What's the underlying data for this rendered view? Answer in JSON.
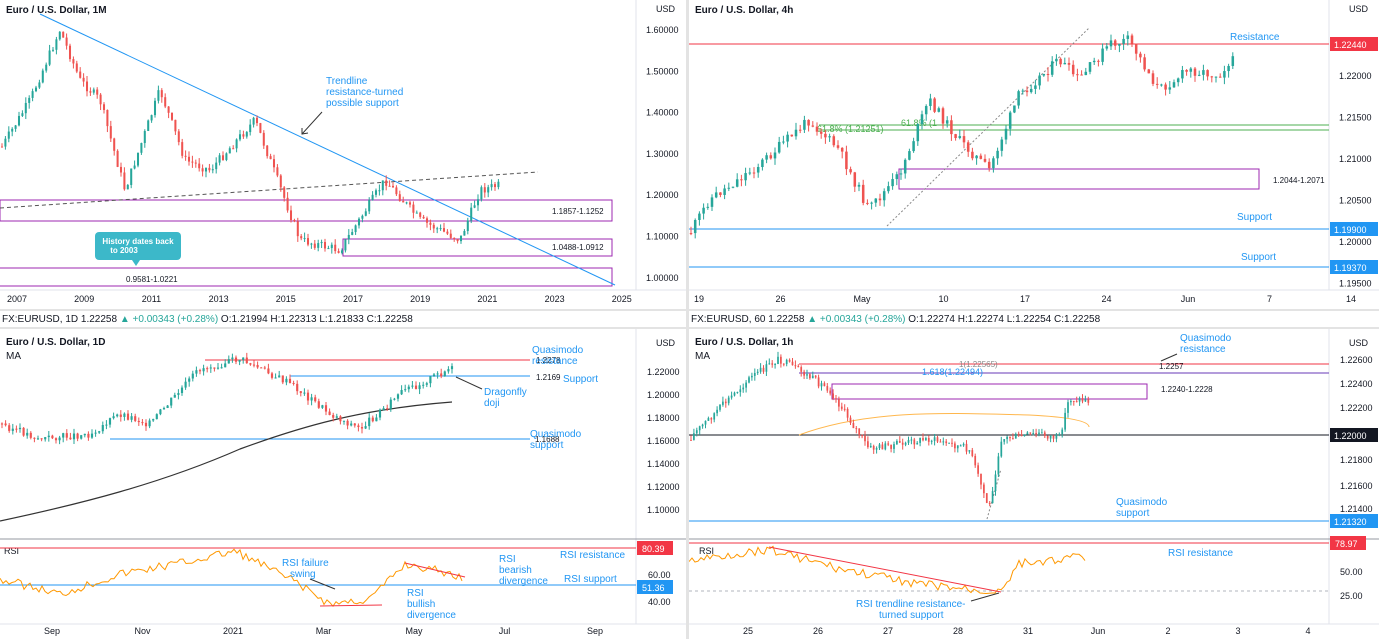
{
  "panels": {
    "monthly": {
      "title": "Euro / U.S. Dollar, 1M",
      "unit": "USD",
      "yticks": [
        "1.60000",
        "1.50000",
        "1.40000",
        "1.30000",
        "1.20000",
        "1.10000",
        "1.00000"
      ],
      "xticks": [
        "2007",
        "2009",
        "2011",
        "2013",
        "2015",
        "2017",
        "2019",
        "2021",
        "2023",
        "2025"
      ],
      "zones": [
        {
          "label": "1.1857-1.1252",
          "lo": 1.1252,
          "hi": 1.1857
        },
        {
          "label": "1.0488-1.0912",
          "lo": 1.0488,
          "hi": 1.0912
        },
        {
          "label": "0.9581-1.0221",
          "lo": 0.9581,
          "hi": 1.0221
        }
      ],
      "annotation": "Trendline resistance-turned possible support",
      "annotation_lines": [
        "Trendline",
        "resistance-turned",
        "possible support"
      ],
      "callout_lines": [
        "History dates back",
        "to 2003"
      ]
    },
    "h4": {
      "title": "Euro / U.S. Dollar, 4h",
      "unit": "USD",
      "yticks": [
        "1.22000",
        "1.21500",
        "1.21000",
        "1.20500",
        "1.20000",
        "1.19500"
      ],
      "xticks": [
        "19",
        "26",
        "May",
        "10",
        "17",
        "24",
        "Jun",
        "7",
        "14"
      ],
      "resistance": {
        "label": "Resistance",
        "price": "1.22440",
        "value": 1.2244
      },
      "support1": {
        "label": "Support",
        "price": "1.19900",
        "value": 1.199
      },
      "support2": {
        "label": "Support",
        "price": "1.19370",
        "value": 1.1937
      },
      "fib1": "61.8% (1.21251)",
      "fib2": "61.8% (1",
      "zone": {
        "label": "1.2044-1.2071",
        "lo": 1.2044,
        "hi": 1.2071
      }
    },
    "daily": {
      "header": {
        "symbol": "FX:EURUSD, 1D",
        "price": "1.22258",
        "change": "+0.00343 (+0.28%)",
        "o": "1.21994",
        "h": "1.22313",
        "l": "1.21833",
        "c": "1.22258"
      },
      "title": "Euro / U.S. Dollar, 1D",
      "ma": "MA",
      "unit": "USD",
      "yticks": [
        "1.22000",
        "1.20000",
        "1.18000",
        "1.16000",
        "1.14000",
        "1.12000",
        "1.10000"
      ],
      "xticks": [
        "Sep",
        "Nov",
        "2021",
        "Mar",
        "May",
        "Jul",
        "Sep"
      ],
      "qm_res": {
        "price": "1.2278",
        "lines": [
          "Quasimodo",
          "resistance"
        ],
        "value": 1.2278
      },
      "support": {
        "price": "1.2169",
        "label": "Support",
        "value": 1.2169
      },
      "qm_sup": {
        "price": "1.1688",
        "lines": [
          "Quasimodo",
          "support"
        ],
        "value": 1.1688
      },
      "doji_lines": [
        "Dragonfly",
        "doji"
      ],
      "rsi": {
        "label": "RSI",
        "resistance_value": "80.39",
        "support_value": "51.36",
        "ticks": [
          "60.00",
          "40.00"
        ],
        "failure_lines": [
          "RSI failure",
          "swing"
        ],
        "bearish_lines": [
          "RSI",
          "bearish",
          "divergence"
        ],
        "bullish_lines": [
          "RSI",
          "bullish",
          "divergence"
        ],
        "res_label": "RSI resistance",
        "sup_label": "RSI support"
      }
    },
    "hourly": {
      "header": {
        "symbol": "FX:EURUSD, 60",
        "price": "1.22258",
        "change": "+0.00343 (+0.28%)",
        "o": "1.22274",
        "h": "1.22274",
        "l": "1.22254",
        "c": "1.22258"
      },
      "title": "Euro / U.S. Dollar, 1h",
      "ma": "MA",
      "unit": "USD",
      "yticks": [
        "1.22600",
        "1.22400",
        "1.22200",
        "1.21800",
        "1.21600",
        "1.21400"
      ],
      "xticks": [
        "25",
        "26",
        "27",
        "28",
        "31",
        "Jun",
        "2",
        "3",
        "4"
      ],
      "qm_res": {
        "price": "1.2257",
        "lines": [
          "Quasimodo",
          "resistance"
        ],
        "value": 1.2257
      },
      "fib_a": "1(1.22565)",
      "fib_b": "1.618(1.22494)",
      "zone": {
        "label": "1.2240-1.2228",
        "lo": 1.2228,
        "hi": 1.224
      },
      "level": {
        "price": "1.22000",
        "value": 1.22
      },
      "qm_sup": {
        "price": "1.21320",
        "lines": [
          "Quasimodo",
          "support"
        ],
        "value": 1.2132
      },
      "rsi": {
        "label": "RSI",
        "value": "78.97",
        "ticks": [
          "50.00",
          "25.00"
        ],
        "res_label": "RSI resistance",
        "trend_lines": [
          "RSI trendline resistance-",
          "turned support"
        ]
      }
    }
  },
  "colors": {
    "bull": "#26a69a",
    "bear": "#ef5350",
    "zone": "#9c27b0",
    "blue": "#2196f3",
    "red": "#f23645",
    "green": "#4caf50",
    "rsi": "#ff9800",
    "ma": "#000000"
  }
}
